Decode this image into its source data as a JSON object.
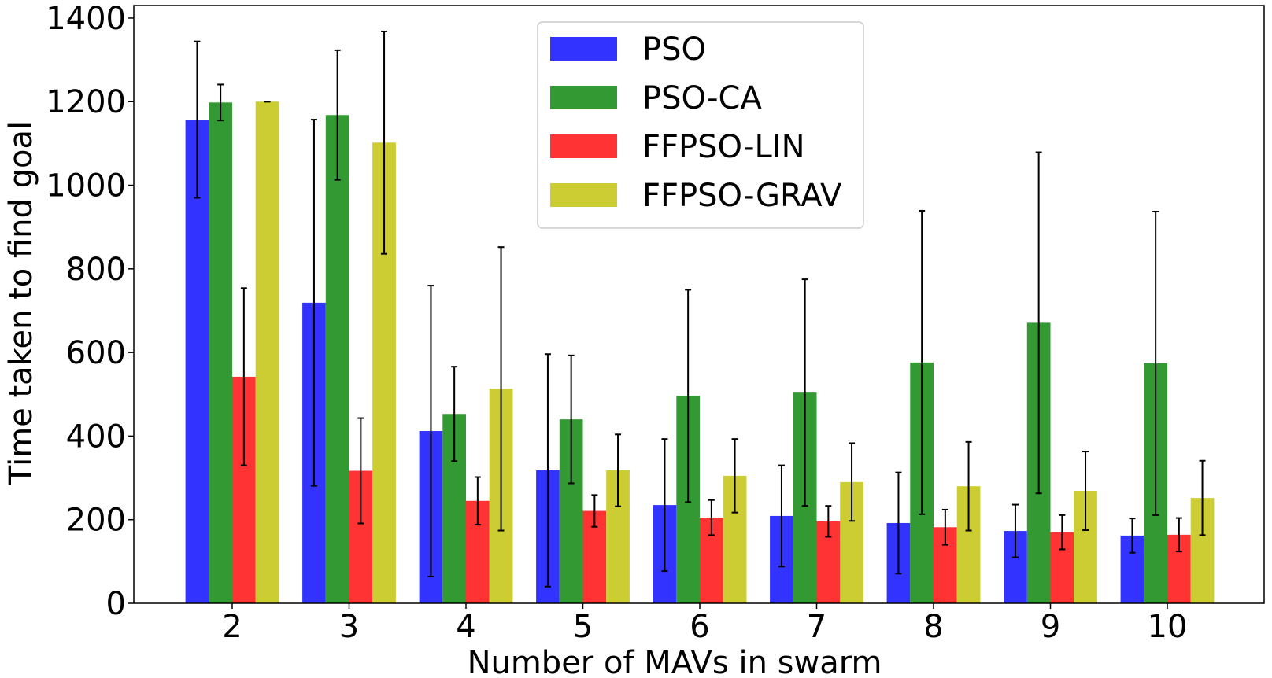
{
  "chart_data": {
    "type": "bar",
    "title": "",
    "xlabel": "Number of MAVs in swarm",
    "ylabel": "Time taken to find goal",
    "ylim": [
      0,
      1430
    ],
    "yticks": [
      0,
      200,
      400,
      600,
      800,
      1000,
      1200,
      1400
    ],
    "categories": [
      "2",
      "3",
      "4",
      "5",
      "6",
      "7",
      "8",
      "9",
      "10"
    ],
    "legend_position": "top-center",
    "grid": false,
    "series": [
      {
        "name": "PSO",
        "color": "#3333ff",
        "values": [
          1157,
          719,
          412,
          318,
          235,
          209,
          192,
          173,
          162
        ],
        "errors": [
          187,
          438,
          348,
          278,
          158,
          121,
          121,
          63,
          41
        ]
      },
      {
        "name": "PSO-CA",
        "color": "#339933",
        "values": [
          1198,
          1168,
          453,
          440,
          496,
          504,
          576,
          671,
          574
        ],
        "errors": [
          43,
          155,
          113,
          153,
          254,
          271,
          363,
          408,
          363
        ]
      },
      {
        "name": "FFPSO-LIN",
        "color": "#ff3333",
        "values": [
          542,
          317,
          245,
          221,
          205,
          196,
          182,
          170,
          164
        ],
        "errors": [
          212,
          126,
          57,
          38,
          42,
          37,
          42,
          41,
          40
        ]
      },
      {
        "name": "FFPSO-GRAV",
        "color": "#cccc33",
        "values": [
          1200,
          1102,
          513,
          318,
          305,
          290,
          280,
          269,
          252
        ],
        "errors": [
          0,
          266,
          339,
          86,
          88,
          93,
          106,
          94,
          89
        ]
      }
    ]
  }
}
